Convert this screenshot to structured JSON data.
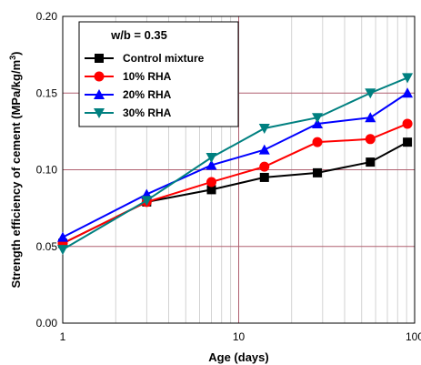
{
  "chart_data": {
    "type": "line",
    "title": "",
    "xlabel": "Age (days)",
    "ylabel": "Strength efficiency of cement (MPa/kg/m",
    "ylabel_superscript": "3",
    "ylabel_close": ")",
    "x_scale": "log",
    "xlim": [
      1,
      100
    ],
    "ylim": [
      0.0,
      0.2
    ],
    "x_ticks": [
      1,
      10,
      100
    ],
    "x_tick_labels": [
      "1",
      "10",
      "100"
    ],
    "y_ticks": [
      0.0,
      0.05,
      0.1,
      0.15,
      0.2
    ],
    "y_tick_labels": [
      "0.00",
      "0.05",
      "0.10",
      "0.15",
      "0.20"
    ],
    "grid": true,
    "legend_title": "w/b = 0.35",
    "legend_position": "top-left",
    "x": [
      1,
      3,
      7,
      14,
      28,
      56,
      91
    ],
    "series": [
      {
        "name": "Control mixture",
        "color": "#000000",
        "marker": "square",
        "values": [
          0.052,
          0.079,
          0.087,
          0.095,
          0.098,
          0.105,
          0.118
        ]
      },
      {
        "name": "10% RHA",
        "color": "#ff0000",
        "marker": "circle",
        "values": [
          0.052,
          0.079,
          0.092,
          0.102,
          0.118,
          0.12,
          0.13
        ]
      },
      {
        "name": "20% RHA",
        "color": "#0000ff",
        "marker": "triangle-up",
        "values": [
          0.056,
          0.084,
          0.103,
          0.113,
          0.13,
          0.134,
          0.15
        ]
      },
      {
        "name": "30% RHA",
        "color": "#008080",
        "marker": "triangle-down",
        "values": [
          0.048,
          0.08,
          0.108,
          0.127,
          0.134,
          0.15,
          0.16
        ]
      }
    ],
    "grid_major_color": "#b06070",
    "grid_minor_color": "#c8c8c8"
  }
}
